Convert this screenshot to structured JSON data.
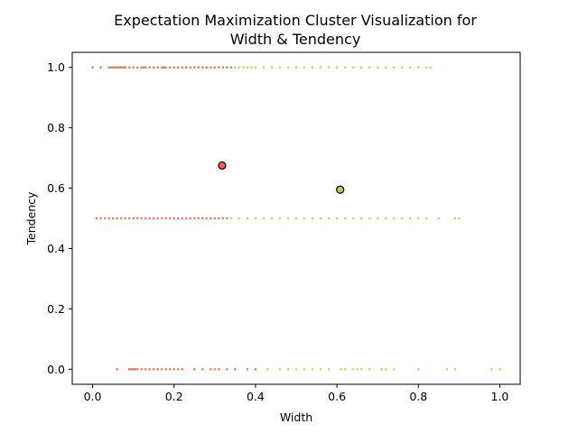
{
  "chart_data": {
    "type": "scatter",
    "title": [
      "Expectation Maximization Cluster Visualization for",
      "Width & Tendency"
    ],
    "xlabel": "Width",
    "ylabel": "Tendency",
    "xlim": [
      -0.05,
      1.05
    ],
    "ylim": [
      -0.05,
      1.05
    ],
    "xticks": [
      0.0,
      0.2,
      0.4,
      0.6,
      0.8,
      1.0
    ],
    "xtick_labels": [
      "0.0",
      "0.2",
      "0.4",
      "0.6",
      "0.8",
      "1.0"
    ],
    "yticks": [
      0.0,
      0.2,
      0.4,
      0.6,
      0.8,
      1.0
    ],
    "ytick_labels": [
      "0.0",
      "0.2",
      "0.4",
      "0.6",
      "0.8",
      "1.0"
    ],
    "grid": false,
    "colors": {
      "cluster_a": "#e8634a",
      "cluster_b": "#b9d24a",
      "center_edge": "#000000"
    },
    "series": [
      {
        "x": [
          0.0,
          0.02,
          0.04,
          0.045,
          0.05,
          0.055,
          0.06,
          0.065,
          0.07,
          0.075,
          0.08,
          0.09,
          0.1,
          0.11,
          0.12,
          0.125,
          0.13,
          0.14,
          0.15,
          0.16,
          0.17,
          0.175,
          0.18,
          0.19,
          0.2,
          0.21,
          0.22,
          0.23,
          0.24,
          0.25,
          0.26,
          0.27,
          0.28,
          0.29,
          0.3,
          0.31,
          0.32,
          0.33,
          0.34,
          0.01,
          0.02,
          0.03,
          0.04,
          0.05,
          0.06,
          0.07,
          0.08,
          0.09,
          0.1,
          0.11,
          0.12,
          0.13,
          0.14,
          0.15,
          0.16,
          0.17,
          0.18,
          0.19,
          0.2,
          0.21,
          0.22,
          0.23,
          0.24,
          0.25,
          0.26,
          0.27,
          0.28,
          0.29,
          0.3,
          0.31,
          0.32,
          0.33,
          0.06,
          0.09,
          0.095,
          0.1,
          0.105,
          0.11,
          0.12,
          0.13,
          0.14,
          0.15,
          0.16,
          0.17,
          0.18,
          0.19,
          0.2,
          0.21,
          0.22,
          0.25,
          0.27,
          0.29,
          0.3,
          0.31,
          0.33,
          0.35,
          0.38,
          0.4
        ],
        "y": [
          1,
          1,
          1,
          1,
          1,
          1,
          1,
          1,
          1,
          1,
          1,
          1,
          1,
          1,
          1,
          1,
          1,
          1,
          1,
          1,
          1,
          1,
          1,
          1,
          1,
          1,
          1,
          1,
          1,
          1,
          1,
          1,
          1,
          1,
          1,
          1,
          1,
          1,
          1,
          0.5,
          0.5,
          0.5,
          0.5,
          0.5,
          0.5,
          0.5,
          0.5,
          0.5,
          0.5,
          0.5,
          0.5,
          0.5,
          0.5,
          0.5,
          0.5,
          0.5,
          0.5,
          0.5,
          0.5,
          0.5,
          0.5,
          0.5,
          0.5,
          0.5,
          0.5,
          0.5,
          0.5,
          0.5,
          0.5,
          0.5,
          0.5,
          0.5,
          0,
          0,
          0,
          0,
          0,
          0,
          0,
          0,
          0,
          0,
          0,
          0,
          0,
          0,
          0,
          0,
          0,
          0,
          0,
          0,
          0,
          0,
          0,
          0,
          0,
          0
        ],
        "color": "#e8634a"
      },
      {
        "x": [
          0.35,
          0.36,
          0.37,
          0.38,
          0.39,
          0.4,
          0.42,
          0.44,
          0.46,
          0.48,
          0.5,
          0.52,
          0.54,
          0.56,
          0.58,
          0.6,
          0.62,
          0.64,
          0.66,
          0.68,
          0.7,
          0.72,
          0.74,
          0.76,
          0.78,
          0.8,
          0.82,
          0.83,
          0.34,
          0.36,
          0.38,
          0.4,
          0.42,
          0.44,
          0.46,
          0.48,
          0.5,
          0.52,
          0.54,
          0.56,
          0.58,
          0.6,
          0.62,
          0.64,
          0.66,
          0.68,
          0.7,
          0.72,
          0.74,
          0.76,
          0.78,
          0.8,
          0.82,
          0.85,
          0.89,
          0.9,
          0.43,
          0.46,
          0.48,
          0.5,
          0.52,
          0.54,
          0.56,
          0.58,
          0.61,
          0.62,
          0.64,
          0.65,
          0.66,
          0.68,
          0.71,
          0.72,
          0.74,
          0.8,
          0.87,
          0.89,
          0.98,
          1.0
        ],
        "y": [
          1,
          1,
          1,
          1,
          1,
          1,
          1,
          1,
          1,
          1,
          1,
          1,
          1,
          1,
          1,
          1,
          1,
          1,
          1,
          1,
          1,
          1,
          1,
          1,
          1,
          1,
          1,
          1,
          0.5,
          0.5,
          0.5,
          0.5,
          0.5,
          0.5,
          0.5,
          0.5,
          0.5,
          0.5,
          0.5,
          0.5,
          0.5,
          0.5,
          0.5,
          0.5,
          0.5,
          0.5,
          0.5,
          0.5,
          0.5,
          0.5,
          0.5,
          0.5,
          0.5,
          0.5,
          0.5,
          0.5,
          0,
          0,
          0,
          0,
          0,
          0,
          0,
          0,
          0,
          0,
          0,
          0,
          0,
          0,
          0,
          0,
          0,
          0,
          0,
          0,
          0,
          0
        ],
        "color": "#b9d24a"
      }
    ],
    "centers": [
      {
        "x": 0.318,
        "y": 0.675,
        "color": "#e8634a"
      },
      {
        "x": 0.608,
        "y": 0.595,
        "color": "#b9d24a"
      }
    ]
  }
}
